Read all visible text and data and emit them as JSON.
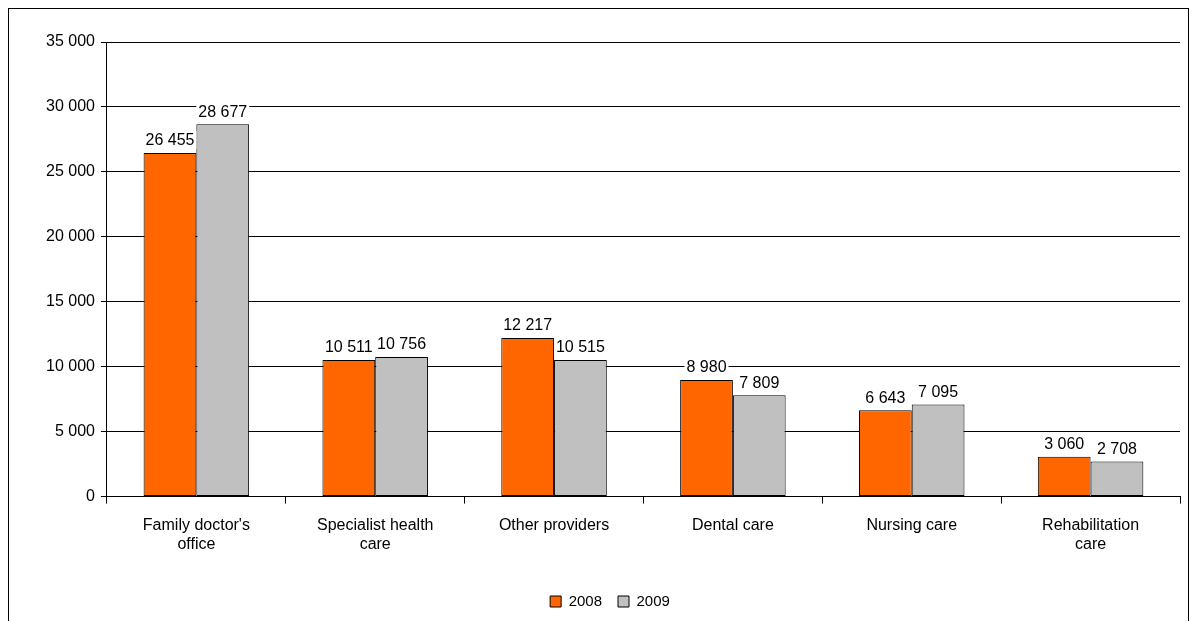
{
  "chart_data": {
    "type": "bar",
    "categories": [
      "Family doctor's office",
      "Specialist health care",
      "Other providers",
      "Dental care",
      "Nursing care",
      "Rehabilitation care"
    ],
    "series": [
      {
        "name": "2008",
        "color": "#ff6600",
        "values": [
          26455,
          10511,
          12217,
          8980,
          6643,
          3060
        ],
        "value_labels": [
          "26 455",
          "10 511",
          "12 217",
          "8 980",
          "6 643",
          "3 060"
        ]
      },
      {
        "name": "2009",
        "color": "#c0c0c0",
        "values": [
          28677,
          10756,
          10515,
          7809,
          7095,
          2708
        ],
        "value_labels": [
          "28 677",
          "10 756",
          "10 515",
          "7 809",
          "7 095",
          "2 708"
        ]
      }
    ],
    "ylim": [
      0,
      35000
    ],
    "yticks": [
      0,
      {
        "value": 5000,
        "label": "5 000"
      },
      {
        "value": 10000,
        "label": "10 000"
      },
      {
        "value": 15000,
        "label": "15 000"
      },
      {
        "value": 20000,
        "label": "20 000"
      },
      {
        "value": 25000,
        "label": "25 000"
      },
      {
        "value": 30000,
        "label": "30 000"
      },
      {
        "value": 35000,
        "label": "35 000"
      }
    ],
    "grid": "y",
    "legend": "bottom"
  }
}
